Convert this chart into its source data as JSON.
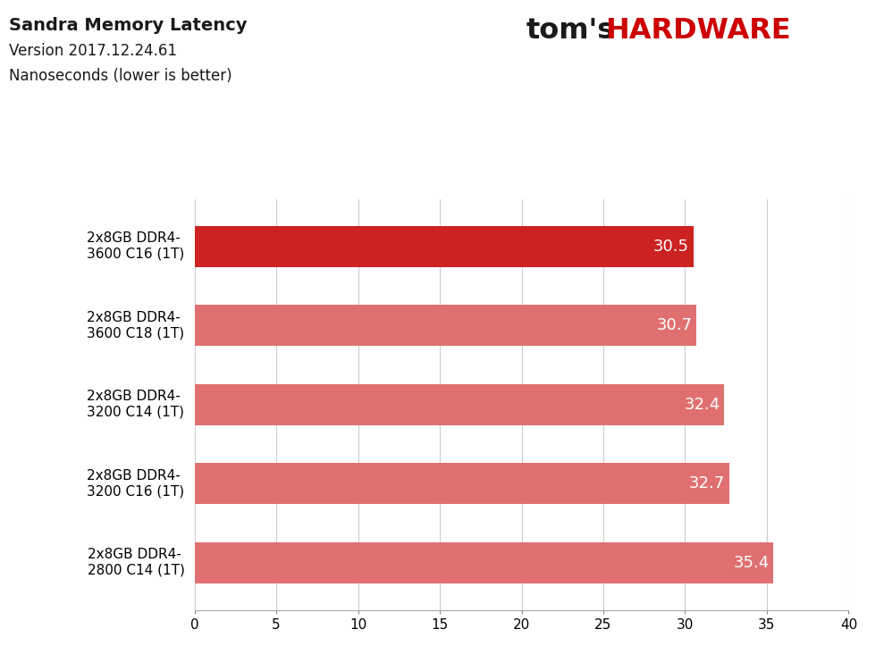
{
  "title_line1": "Sandra Memory Latency",
  "title_line2": "Version 2017.12.24.61",
  "title_line3": "Nanoseconds (lower is better)",
  "categories": [
    "2x8GB DDR4-\n3600 C16 (1T)",
    "2x8GB DDR4-\n3600 C18 (1T)",
    "2x8GB DDR4-\n3200 C14 (1T)",
    "2x8GB DDR4-\n3200 C16 (1T)",
    "2x8GB DDR4-\n2800 C14 (1T)"
  ],
  "values": [
    30.5,
    30.7,
    32.4,
    32.7,
    35.4
  ],
  "bar_colors": [
    "#cc2222",
    "#e07070",
    "#e07070",
    "#e07070",
    "#e07070"
  ],
  "value_labels": [
    "30.5",
    "30.7",
    "32.4",
    "32.7",
    "35.4"
  ],
  "xlim": [
    0,
    40
  ],
  "xticks": [
    0,
    5,
    10,
    15,
    20,
    25,
    30,
    35,
    40
  ],
  "background_color": "#ffffff",
  "bar_height": 0.52,
  "grid_color": "#cccccc",
  "label_color": "#ffffff",
  "label_fontsize": 13,
  "tick_fontsize": 11,
  "ytick_fontsize": 11
}
